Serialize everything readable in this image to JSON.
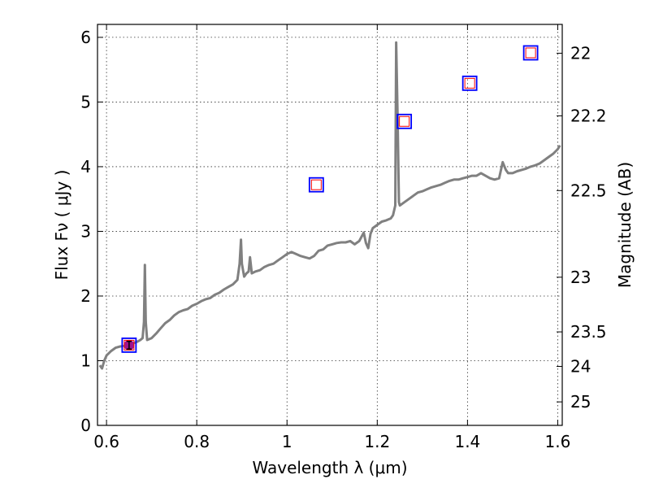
{
  "chart_data": {
    "type": "line",
    "title": "",
    "xlabel": "Wavelength  λ (μm)",
    "ylabel": "Flux  Fν  ( μJy )",
    "y2label": "Magnitude (AB)",
    "xlim": [
      0.58,
      1.61
    ],
    "ylim": [
      0,
      6.2
    ],
    "grid": true,
    "x_ticks": [
      0.6,
      0.8,
      1.0,
      1.2,
      1.4,
      1.6
    ],
    "x_tick_labels": [
      "0.6",
      "0.8",
      "1",
      "1.2",
      "1.4",
      "1.6"
    ],
    "y_ticks": [
      0,
      1,
      2,
      3,
      4,
      5,
      6
    ],
    "y_tick_labels": [
      "0",
      "1",
      "2",
      "3",
      "4",
      "5",
      "6"
    ],
    "y2_ticks": [
      22,
      22.2,
      22.5,
      23,
      23.5,
      24,
      25
    ],
    "y2_tick_labels": [
      "22",
      "22.2",
      "22.5",
      "23",
      "23.5",
      "24",
      "25"
    ],
    "colors": {
      "spectrum": "#808080",
      "model_box_outer": "#0000ff",
      "model_box_inner": "#ff0000",
      "observed_point": "#a0138e"
    },
    "series": [
      {
        "type": "line",
        "x": [
          0.585,
          0.59,
          0.595,
          0.6,
          0.61,
          0.62,
          0.63,
          0.64,
          0.65,
          0.66,
          0.67,
          0.675,
          0.68,
          0.683,
          0.685,
          0.687,
          0.69,
          0.7,
          0.71,
          0.72,
          0.73,
          0.74,
          0.75,
          0.76,
          0.77,
          0.78,
          0.79,
          0.8,
          0.81,
          0.82,
          0.83,
          0.84,
          0.85,
          0.86,
          0.87,
          0.88,
          0.89,
          0.895,
          0.898,
          0.9,
          0.905,
          0.91,
          0.915,
          0.918,
          0.922,
          0.93,
          0.94,
          0.95,
          0.96,
          0.97,
          0.98,
          0.99,
          1.0,
          1.01,
          1.02,
          1.03,
          1.04,
          1.05,
          1.06,
          1.07,
          1.08,
          1.09,
          1.1,
          1.11,
          1.12,
          1.13,
          1.14,
          1.15,
          1.16,
          1.17,
          1.175,
          1.18,
          1.185,
          1.19,
          1.2,
          1.21,
          1.22,
          1.23,
          1.235,
          1.24,
          1.242,
          1.245,
          1.248,
          1.25,
          1.26,
          1.27,
          1.28,
          1.29,
          1.3,
          1.31,
          1.32,
          1.33,
          1.34,
          1.35,
          1.36,
          1.37,
          1.38,
          1.39,
          1.4,
          1.41,
          1.42,
          1.43,
          1.44,
          1.45,
          1.46,
          1.47,
          1.478,
          1.485,
          1.49,
          1.5,
          1.51,
          1.52,
          1.53,
          1.54,
          1.55,
          1.56,
          1.57,
          1.58,
          1.59,
          1.6,
          1.605
        ],
        "y": [
          0.93,
          0.88,
          1.0,
          1.08,
          1.15,
          1.2,
          1.22,
          1.23,
          1.25,
          1.27,
          1.3,
          1.32,
          1.35,
          1.6,
          2.48,
          1.6,
          1.32,
          1.35,
          1.42,
          1.5,
          1.58,
          1.63,
          1.7,
          1.75,
          1.78,
          1.8,
          1.85,
          1.88,
          1.92,
          1.95,
          1.97,
          2.02,
          2.05,
          2.1,
          2.14,
          2.18,
          2.25,
          2.5,
          2.87,
          2.5,
          2.3,
          2.35,
          2.38,
          2.6,
          2.35,
          2.38,
          2.4,
          2.45,
          2.48,
          2.5,
          2.55,
          2.6,
          2.65,
          2.68,
          2.65,
          2.62,
          2.6,
          2.58,
          2.62,
          2.7,
          2.72,
          2.78,
          2.8,
          2.82,
          2.83,
          2.83,
          2.85,
          2.8,
          2.85,
          2.98,
          2.82,
          2.74,
          2.96,
          3.05,
          3.1,
          3.15,
          3.17,
          3.2,
          3.25,
          3.4,
          5.92,
          4.8,
          3.45,
          3.4,
          3.45,
          3.5,
          3.55,
          3.6,
          3.62,
          3.65,
          3.68,
          3.7,
          3.72,
          3.75,
          3.78,
          3.8,
          3.8,
          3.82,
          3.84,
          3.86,
          3.86,
          3.9,
          3.86,
          3.82,
          3.8,
          3.82,
          4.07,
          3.95,
          3.9,
          3.9,
          3.93,
          3.95,
          3.97,
          4.0,
          4.02,
          4.05,
          4.1,
          4.15,
          4.2,
          4.27,
          4.33
        ]
      },
      {
        "type": "scatter",
        "x": [
          0.65,
          1.065,
          1.26,
          1.405,
          1.54
        ],
        "y": [
          1.24,
          3.72,
          4.7,
          5.29,
          5.76
        ]
      },
      {
        "type": "errorbar",
        "x": [
          0.65
        ],
        "y": [
          1.24
        ],
        "yerr": [
          0.06
        ]
      }
    ]
  }
}
